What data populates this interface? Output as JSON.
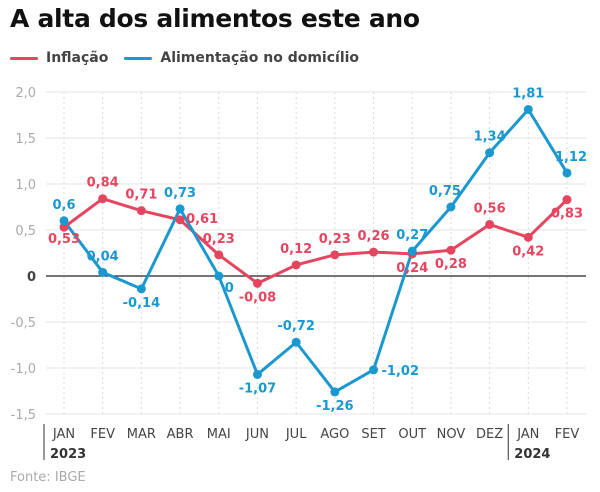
{
  "chart_data": {
    "type": "line",
    "title": "A alta dos alimentos este ano",
    "xlabel": "",
    "ylabel": "",
    "categories": [
      "JAN",
      "FEV",
      "MAR",
      "ABR",
      "MAI",
      "JUN",
      "JUL",
      "AGO",
      "SET",
      "OUT",
      "NOV",
      "DEZ",
      "JAN",
      "FEV"
    ],
    "year_labels": [
      {
        "index": 0,
        "label": "2023"
      },
      {
        "index": 12,
        "label": "2024"
      }
    ],
    "yticks": [
      2.0,
      1.5,
      1.0,
      0.5,
      0,
      -0.5,
      -1.0,
      -1.5
    ],
    "ytick_labels": [
      "2,0",
      "1,5",
      "1,0",
      "0,5",
      "0",
      "-0,5",
      "-1,0",
      "-1,5"
    ],
    "ylim": [
      -1.5,
      2.0
    ],
    "grid": true,
    "legend_position": "top-left",
    "series": [
      {
        "name": "Inflação",
        "color": "#e5455e",
        "values": [
          0.53,
          0.84,
          0.71,
          0.61,
          0.23,
          -0.08,
          0.12,
          0.23,
          0.26,
          0.24,
          0.28,
          0.56,
          0.42,
          0.83
        ],
        "labels": [
          "0,53",
          "0,84",
          "0,71",
          "0,61",
          "0,23",
          "-0,08",
          "0,12",
          "0,23",
          "0,26",
          "0,24",
          "0,28",
          "0,56",
          "0,42",
          "0,83"
        ]
      },
      {
        "name": "Alimentação no domicílio",
        "color": "#1b98d0",
        "values": [
          0.6,
          0.04,
          -0.14,
          0.73,
          0,
          -1.07,
          -0.72,
          -1.26,
          -1.02,
          0.27,
          0.75,
          1.34,
          1.81,
          1.12
        ],
        "labels": [
          "0,6",
          "0,04",
          "-0,14",
          "0,73",
          "0",
          "-1,07",
          "-0,72",
          "-1,26",
          "-1,02",
          "0,27",
          "0,75",
          "1,34",
          "1,81",
          "1,12"
        ]
      }
    ]
  },
  "source": "Fonte: IBGE"
}
